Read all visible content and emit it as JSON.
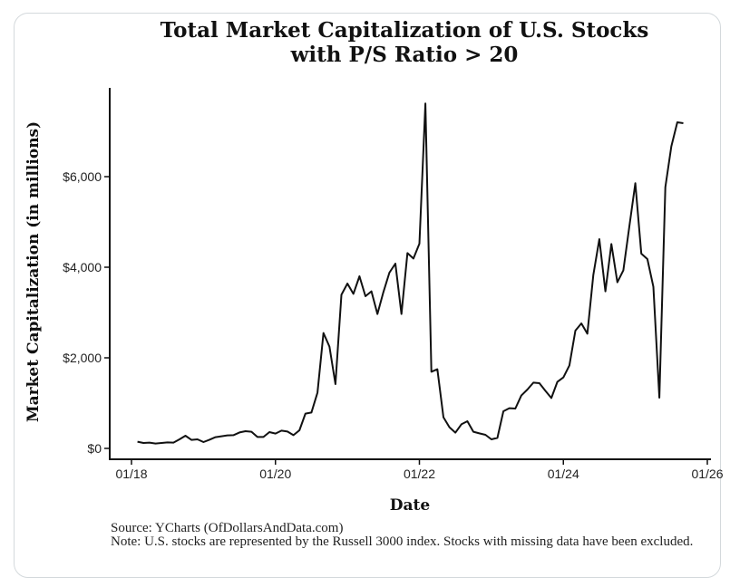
{
  "chart_data": {
    "type": "line",
    "title_line1": "Total Market Capitalization of U.S. Stocks",
    "title_line2": "with P/S Ratio > 20",
    "xlabel": "Date",
    "ylabel": "Market Capitalization (in millions)",
    "yticks": [
      0,
      2000,
      4000,
      6000
    ],
    "ytick_labels": [
      "$0",
      "$2,000",
      "$4,000",
      "$6,000"
    ],
    "xticks": [
      "2018-01",
      "2020-01",
      "2022-01",
      "2024-01",
      "2026-01"
    ],
    "xtick_labels": [
      "01/18",
      "01/20",
      "01/22",
      "01/24",
      "01/26"
    ],
    "ylim": [
      0,
      7600
    ],
    "grid": false,
    "line_color": "#111111",
    "x": [
      "2018-02",
      "2018-03",
      "2018-04",
      "2018-05",
      "2018-06",
      "2018-07",
      "2018-08",
      "2018-09",
      "2018-10",
      "2018-11",
      "2018-12",
      "2019-01",
      "2019-02",
      "2019-03",
      "2019-04",
      "2019-05",
      "2019-06",
      "2019-07",
      "2019-08",
      "2019-09",
      "2019-10",
      "2019-11",
      "2019-12",
      "2020-01",
      "2020-02",
      "2020-03",
      "2020-04",
      "2020-05",
      "2020-06",
      "2020-07",
      "2020-08",
      "2020-09",
      "2020-10",
      "2020-11",
      "2020-12",
      "2021-01",
      "2021-02",
      "2021-03",
      "2021-04",
      "2021-05",
      "2021-06",
      "2021-07",
      "2021-08",
      "2021-09",
      "2021-10",
      "2021-11",
      "2021-12",
      "2022-01",
      "2022-02",
      "2022-03",
      "2022-04",
      "2022-05",
      "2022-06",
      "2022-07",
      "2022-08",
      "2022-09",
      "2022-10",
      "2022-11",
      "2022-12",
      "2023-01",
      "2023-02",
      "2023-03",
      "2023-04",
      "2023-05",
      "2023-06",
      "2023-07",
      "2023-08",
      "2023-09",
      "2023-10",
      "2023-11",
      "2023-12",
      "2024-01",
      "2024-02",
      "2024-03",
      "2024-04",
      "2024-05",
      "2024-06",
      "2024-07",
      "2024-08",
      "2024-09",
      "2024-10",
      "2024-11",
      "2024-12",
      "2025-01",
      "2025-02",
      "2025-03",
      "2025-04",
      "2025-05",
      "2025-06",
      "2025-07",
      "2025-08",
      "2025-09"
    ],
    "y": [
      147,
      120,
      127,
      107,
      120,
      133,
      127,
      200,
      280,
      187,
      200,
      140,
      193,
      247,
      267,
      287,
      293,
      353,
      380,
      367,
      253,
      253,
      360,
      327,
      393,
      373,
      293,
      400,
      767,
      793,
      1233,
      2547,
      2247,
      1420,
      3393,
      3640,
      3413,
      3800,
      3360,
      3467,
      2967,
      3453,
      3880,
      4080,
      2967,
      4313,
      4193,
      4520,
      7613,
      1693,
      1747,
      687,
      467,
      347,
      533,
      600,
      367,
      333,
      300,
      200,
      233,
      820,
      887,
      880,
      1167,
      1300,
      1453,
      1440,
      1273,
      1113,
      1467,
      1567,
      1833,
      2600,
      2760,
      2533,
      3833,
      4620,
      3467,
      4513,
      3667,
      3933,
      4900,
      5853,
      4300,
      4180,
      3567,
      1120,
      5767,
      6667,
      7200,
      7180
    ]
  },
  "footer": {
    "source": "Source: YCharts (OfDollarsAndData.com)",
    "note": "Note: U.S. stocks are represented by the Russell 3000 index. Stocks with missing data have been excluded."
  }
}
